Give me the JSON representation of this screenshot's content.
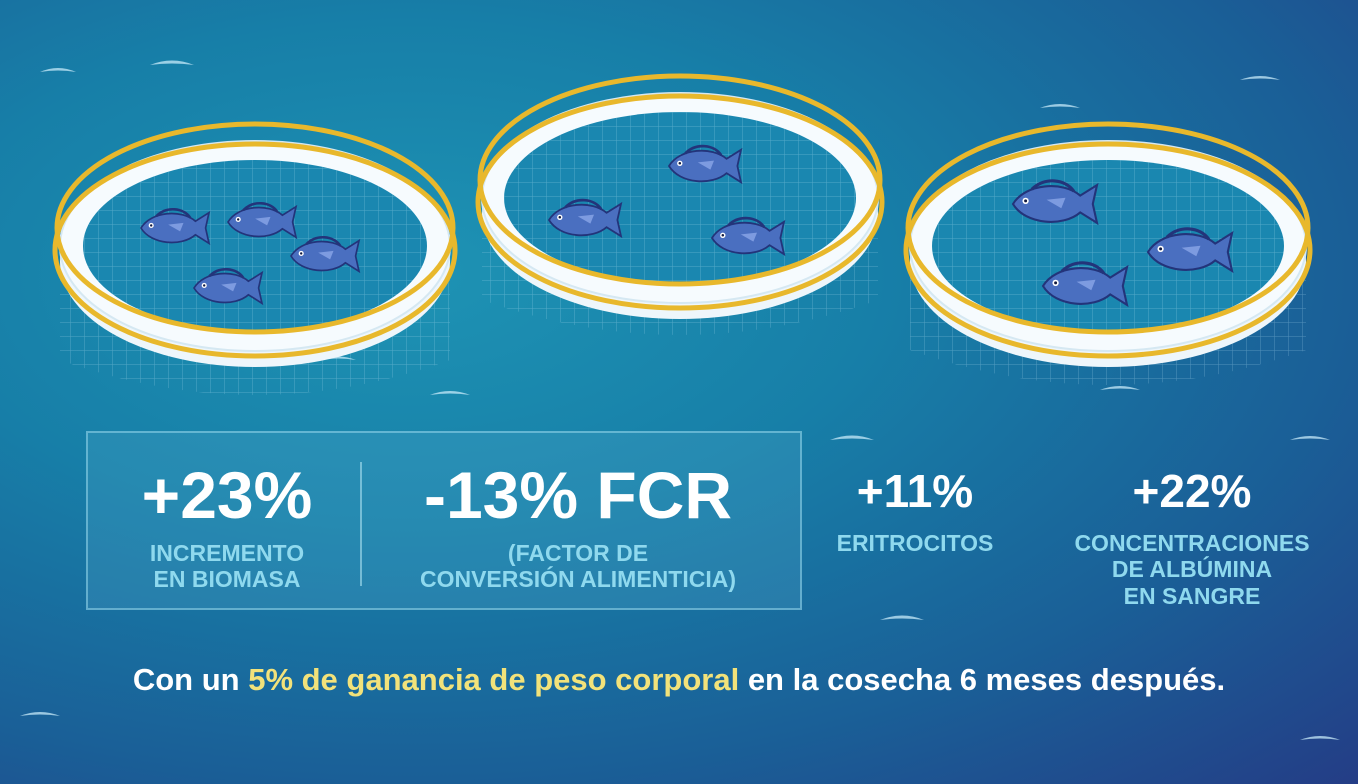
{
  "stats": [
    {
      "value": "+23%",
      "label_lines": [
        "INCREMENTO",
        "EN BIOMASA"
      ]
    },
    {
      "value": "-13% FCR",
      "label_lines": [
        "(FACTOR DE",
        "CONVERSIÓN ALIMENTICIA)"
      ]
    },
    {
      "value": "+11%",
      "label_lines": [
        "ERITROCITOS"
      ]
    },
    {
      "value": "+22%",
      "label_lines": [
        "CONCENTRACIONES",
        "DE ALBÚMINA",
        "EN SANGRE"
      ]
    }
  ],
  "footer": {
    "prefix": "Con un ",
    "highlight": "5% de ganancia de peso corporal",
    "suffix": " en la cosecha 6 meses después."
  },
  "colors": {
    "water": "#177fa8",
    "stat_label": "#8fd9ee",
    "highlight": "#f2e27a",
    "railing": "#e8b82c",
    "fish": "#4a6fc0"
  },
  "illustration": {
    "cages": [
      {
        "name": "fish-cage",
        "fish_count": 4
      },
      {
        "name": "fish-cage",
        "fish_count": 3
      },
      {
        "name": "fish-cage",
        "fish_count": 3
      }
    ]
  }
}
